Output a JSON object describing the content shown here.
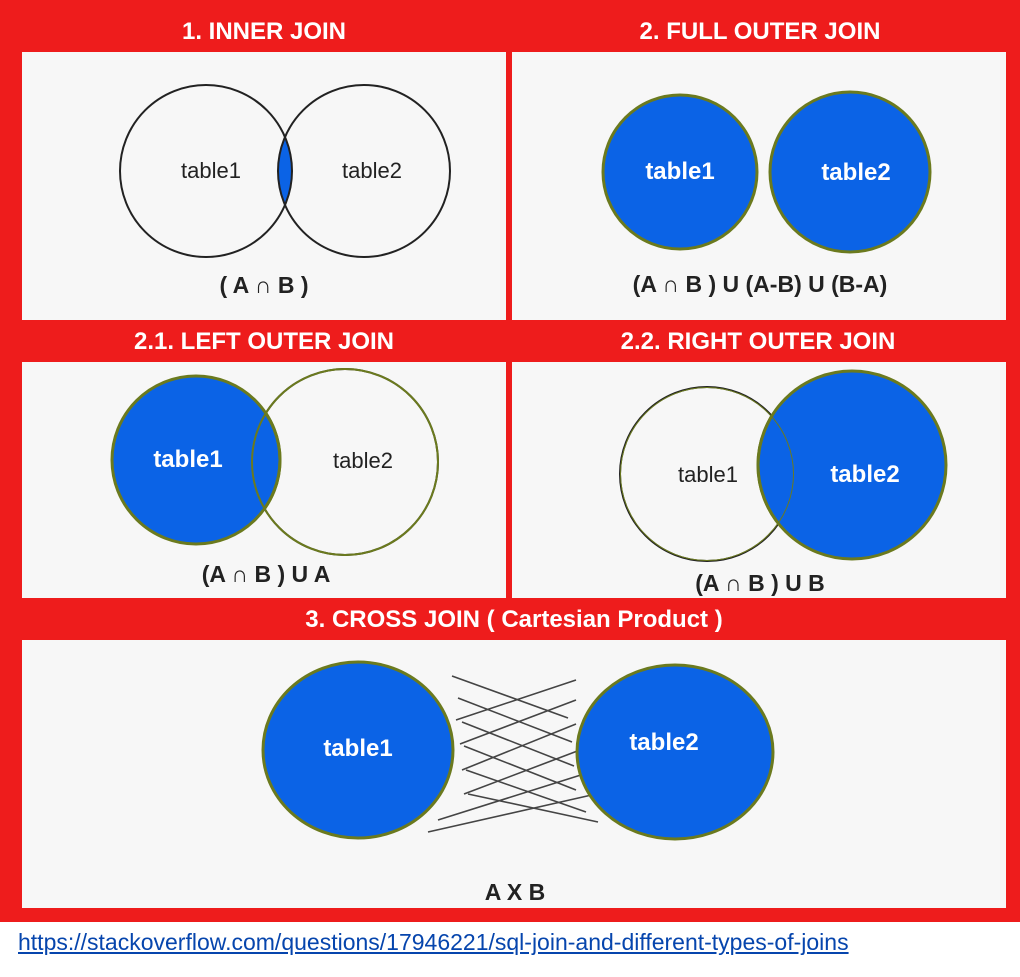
{
  "colors": {
    "frame": "#ee1c1c",
    "panel": "#f7f7f7",
    "fill": "#0b63e6",
    "fill_stroke": "#6b7a1e",
    "outline": "#222222",
    "header_text": "#ffffff",
    "link": "#0645ad"
  },
  "sections": {
    "inner": {
      "title": "1. INNER JOIN",
      "left": "table1",
      "right": "table2",
      "formula": "( A ∩ B )"
    },
    "full": {
      "title": "2. FULL OUTER JOIN",
      "left": "table1",
      "right": "table2",
      "formula": "(A ∩ B ) U (A-B) U (B-A)"
    },
    "left": {
      "title": "2.1. LEFT OUTER JOIN",
      "left": "table1",
      "right": "table2",
      "formula": "(A ∩ B ) U A"
    },
    "right": {
      "title": "2.2. RIGHT OUTER JOIN",
      "left": "table1",
      "right": "table2",
      "formula": "(A ∩ B ) U B"
    },
    "cross": {
      "title": "3. CROSS JOIN ( Cartesian Product )",
      "left": "table1",
      "right": "table2",
      "formula": "A X B"
    }
  },
  "source_link": "https://stackoverflow.com/questions/17946221/sql-join-and-different-types-of-joins"
}
